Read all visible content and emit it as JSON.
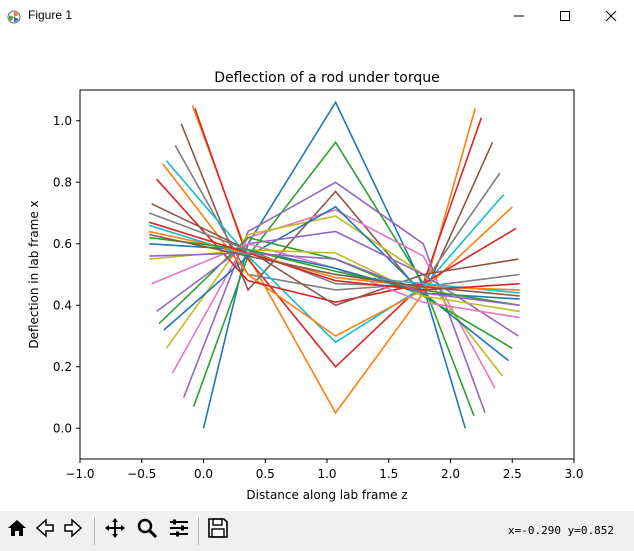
{
  "window": {
    "title": "Figure 1"
  },
  "toolbar": {
    "buttons": [
      "home-icon",
      "back-icon",
      "forward-icon",
      "pan-icon",
      "zoom-icon",
      "configure-subplots-icon",
      "save-icon"
    ],
    "coords": "x=-0.290 y=0.852"
  },
  "colors": [
    "#1f77b4",
    "#ff7f0e",
    "#2ca02c",
    "#d62728",
    "#9467bd",
    "#8c564b",
    "#e377c2",
    "#7f7f7f",
    "#bcbd22",
    "#17becf"
  ],
  "chart_data": {
    "type": "line",
    "title": "Deflection of a rod under torque",
    "xlabel": "Distance along lab frame z",
    "ylabel": "Deflection in lab frame x",
    "xlim": [
      -1.0,
      3.0
    ],
    "ylim": [
      -0.1,
      1.1
    ],
    "xticks": [
      "−1.0",
      "−0.5",
      "0.0",
      "0.5",
      "1.0",
      "1.5",
      "2.0",
      "2.5",
      "3.0"
    ],
    "yticks": [
      "0.0",
      "0.2",
      "0.4",
      "0.6",
      "0.8",
      "1.0"
    ],
    "grid": false,
    "series": [
      {
        "x": [
          0.0,
          0.36,
          1.07,
          1.78,
          2.12
        ],
        "y": [
          0.0,
          0.6,
          1.06,
          0.46,
          0.0
        ]
      },
      {
        "x": [
          -0.09,
          0.36,
          1.07,
          1.78,
          2.2
        ],
        "y": [
          1.05,
          0.56,
          0.05,
          0.44,
          1.04
        ]
      },
      {
        "x": [
          -0.08,
          0.36,
          1.07,
          1.78,
          2.19
        ],
        "y": [
          0.07,
          0.56,
          0.93,
          0.47,
          0.04
        ]
      },
      {
        "x": [
          -0.07,
          0.36,
          1.07,
          1.78,
          2.25
        ],
        "y": [
          1.04,
          0.55,
          0.2,
          0.47,
          1.01
        ]
      },
      {
        "x": [
          -0.16,
          0.36,
          1.07,
          1.78,
          2.28
        ],
        "y": [
          0.1,
          0.64,
          0.8,
          0.6,
          0.05
        ]
      },
      {
        "x": [
          -0.18,
          0.36,
          1.07,
          1.78,
          2.34
        ],
        "y": [
          0.99,
          0.45,
          0.77,
          0.43,
          0.93
        ]
      },
      {
        "x": [
          -0.25,
          0.36,
          1.07,
          1.78,
          2.36
        ],
        "y": [
          0.18,
          0.62,
          0.71,
          0.56,
          0.13
        ]
      },
      {
        "x": [
          -0.23,
          0.36,
          1.07,
          1.78,
          2.4
        ],
        "y": [
          0.92,
          0.5,
          0.45,
          0.47,
          0.83
        ]
      },
      {
        "x": [
          -0.3,
          0.36,
          1.07,
          1.78,
          2.42
        ],
        "y": [
          0.26,
          0.63,
          0.69,
          0.5,
          0.17
        ]
      },
      {
        "x": [
          -0.3,
          0.36,
          1.07,
          1.78,
          2.43
        ],
        "y": [
          0.87,
          0.56,
          0.28,
          0.46,
          0.76
        ]
      },
      {
        "x": [
          -0.32,
          0.36,
          1.07,
          1.78,
          2.47
        ],
        "y": [
          0.32,
          0.56,
          0.72,
          0.44,
          0.22
        ]
      },
      {
        "x": [
          -0.33,
          0.36,
          1.07,
          1.78,
          2.5
        ],
        "y": [
          0.86,
          0.5,
          0.3,
          0.45,
          0.72
        ]
      },
      {
        "x": [
          -0.36,
          0.36,
          1.07,
          1.78,
          2.5
        ],
        "y": [
          0.34,
          0.62,
          0.55,
          0.43,
          0.26
        ]
      },
      {
        "x": [
          -0.38,
          0.36,
          1.07,
          1.78,
          2.53
        ],
        "y": [
          0.81,
          0.48,
          0.41,
          0.47,
          0.65
        ]
      },
      {
        "x": [
          -0.38,
          0.36,
          1.07,
          1.78,
          2.55
        ],
        "y": [
          0.38,
          0.6,
          0.64,
          0.5,
          0.3
        ]
      },
      {
        "x": [
          -0.42,
          0.36,
          1.07,
          1.78,
          2.55
        ],
        "y": [
          0.73,
          0.58,
          0.4,
          0.5,
          0.55
        ]
      },
      {
        "x": [
          -0.42,
          0.36,
          1.07,
          1.78,
          2.56
        ],
        "y": [
          0.47,
          0.6,
          0.52,
          0.41,
          0.36
        ]
      },
      {
        "x": [
          -0.44,
          0.36,
          1.07,
          1.78,
          2.56
        ],
        "y": [
          0.7,
          0.58,
          0.47,
          0.46,
          0.5
        ]
      },
      {
        "x": [
          -0.44,
          0.36,
          1.07,
          1.78,
          2.56
        ],
        "y": [
          0.55,
          0.58,
          0.57,
          0.43,
          0.38
        ]
      },
      {
        "x": [
          -0.44,
          0.36,
          1.07,
          1.78,
          2.56
        ],
        "y": [
          0.66,
          0.56,
          0.5,
          0.47,
          0.44
        ]
      },
      {
        "x": [
          -0.44,
          0.36,
          1.07,
          1.78,
          2.56
        ],
        "y": [
          0.6,
          0.58,
          0.52,
          0.44,
          0.42
        ]
      },
      {
        "x": [
          -0.44,
          0.36,
          1.07,
          1.78,
          2.56
        ],
        "y": [
          0.64,
          0.57,
          0.49,
          0.46,
          0.45
        ]
      },
      {
        "x": [
          -0.44,
          0.36,
          1.07,
          1.78,
          2.56
        ],
        "y": [
          0.62,
          0.58,
          0.51,
          0.45,
          0.4
        ]
      },
      {
        "x": [
          -0.44,
          0.36,
          1.07,
          1.78,
          2.56
        ],
        "y": [
          0.67,
          0.57,
          0.48,
          0.45,
          0.47
        ]
      },
      {
        "x": [
          -0.44,
          0.36,
          1.07,
          1.78,
          2.56
        ],
        "y": [
          0.56,
          0.57,
          0.55,
          0.44,
          0.4
        ]
      },
      {
        "x": [
          -0.44,
          0.36,
          1.07,
          1.78,
          2.56
        ],
        "y": [
          0.63,
          0.56,
          0.5,
          0.46,
          0.43
        ]
      }
    ]
  }
}
